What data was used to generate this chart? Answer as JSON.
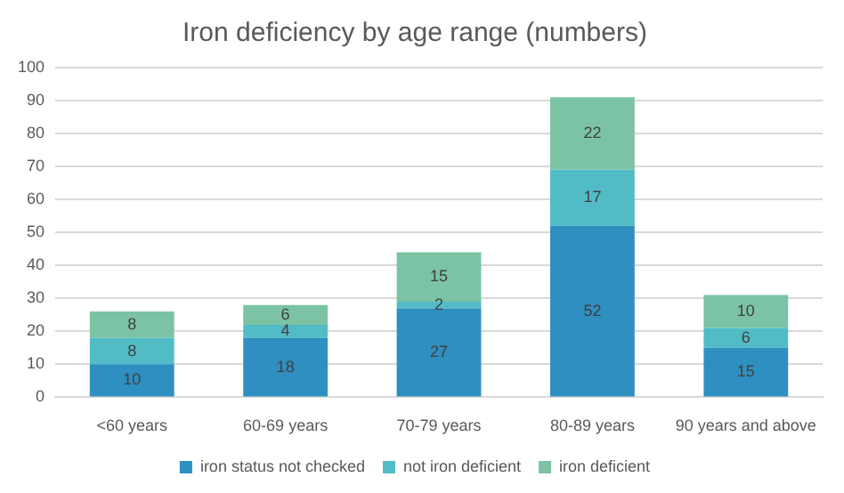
{
  "chart_data": {
    "type": "bar",
    "title": "Iron deficiency by age range (numbers)",
    "categories": [
      "<60 years",
      "60-69 years",
      "70-79 years",
      "80-89 years",
      "90 years and above"
    ],
    "series": [
      {
        "name": "iron status not checked",
        "color": "#2e8fc0",
        "values": [
          10,
          18,
          27,
          52,
          15
        ]
      },
      {
        "name": "not iron deficient",
        "color": "#52bcc6",
        "values": [
          8,
          4,
          2,
          17,
          6
        ]
      },
      {
        "name": "iron deficient",
        "color": "#7bc3a4",
        "values": [
          8,
          6,
          15,
          22,
          10
        ]
      }
    ],
    "stacked": true,
    "ylim": [
      0,
      100
    ],
    "yticks": [
      0,
      10,
      20,
      30,
      40,
      50,
      60,
      70,
      80,
      90,
      100
    ],
    "grid": "y",
    "legend": "bottom",
    "data_labels": true
  }
}
